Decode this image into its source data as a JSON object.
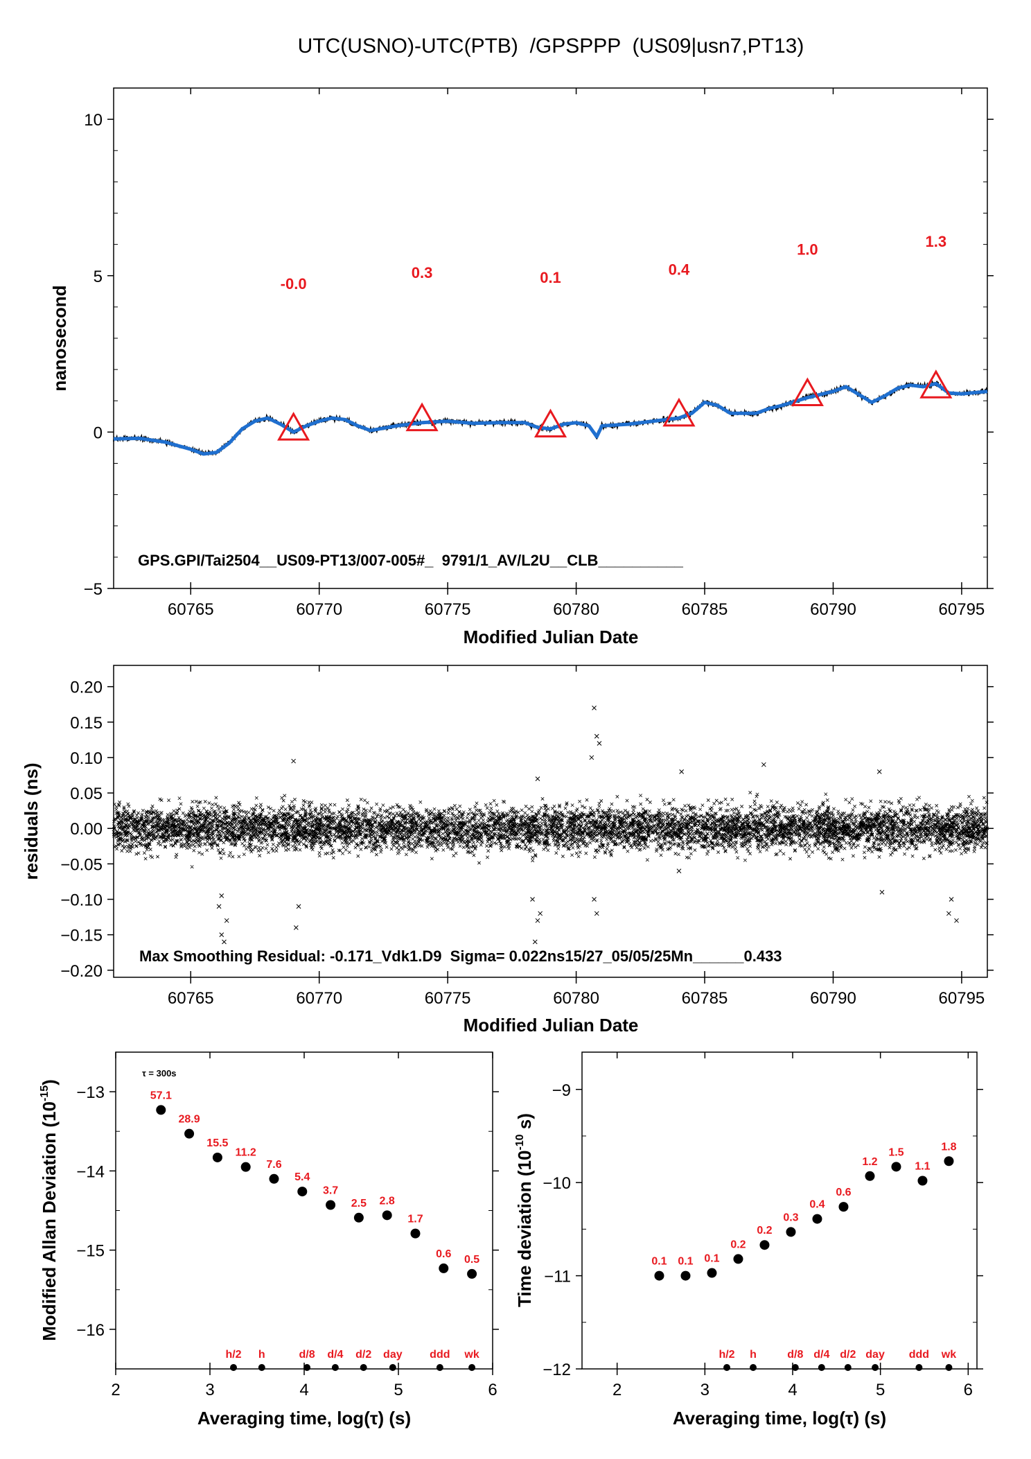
{
  "title": "UTC(USNO)-UTC(PTB)  /GPSPPP  (US09|usn7,PT13)",
  "colors": {
    "series": "#1f6fcf",
    "raw": "#000000",
    "markers": "#e8191f"
  },
  "chart_data": [
    {
      "type": "line",
      "panel": "top",
      "xlabel": "Modified Julian Date",
      "ylabel": "nanosecond",
      "xlim": [
        60762,
        60796
      ],
      "ylim": [
        -5,
        11
      ],
      "xticks": [
        60765,
        60770,
        60775,
        60780,
        60785,
        60790,
        60795
      ],
      "yticks": [
        -5,
        0,
        5,
        10
      ],
      "series_points": [
        [
          60762,
          -0.22
        ],
        [
          60763,
          -0.2
        ],
        [
          60764,
          -0.32
        ],
        [
          60765,
          -0.55
        ],
        [
          60765.5,
          -0.7
        ],
        [
          60766,
          -0.65
        ],
        [
          60766.5,
          -0.35
        ],
        [
          60767,
          0.1
        ],
        [
          60767.5,
          0.35
        ],
        [
          60768,
          0.45
        ],
        [
          60768.5,
          0.25
        ],
        [
          60769,
          0.0
        ],
        [
          60769.5,
          0.2
        ],
        [
          60770,
          0.35
        ],
        [
          60770.5,
          0.45
        ],
        [
          60771,
          0.4
        ],
        [
          60771.5,
          0.2
        ],
        [
          60772,
          0.05
        ],
        [
          60773,
          0.2
        ],
        [
          60774,
          0.3
        ],
        [
          60775,
          0.35
        ],
        [
          60776,
          0.28
        ],
        [
          60777,
          0.3
        ],
        [
          60778,
          0.3
        ],
        [
          60778.5,
          0.15
        ],
        [
          60779,
          0.1
        ],
        [
          60779.5,
          0.25
        ],
        [
          60780,
          0.3
        ],
        [
          60780.5,
          0.2
        ],
        [
          60780.8,
          -0.15
        ],
        [
          60781,
          0.2
        ],
        [
          60782,
          0.25
        ],
        [
          60783,
          0.35
        ],
        [
          60784,
          0.45
        ],
        [
          60784.5,
          0.6
        ],
        [
          60785,
          0.95
        ],
        [
          60785.5,
          0.85
        ],
        [
          60786,
          0.6
        ],
        [
          60787,
          0.6
        ],
        [
          60787.5,
          0.75
        ],
        [
          60788,
          0.85
        ],
        [
          60789,
          1.1
        ],
        [
          60789.5,
          1.2
        ],
        [
          60790,
          1.3
        ],
        [
          60790.5,
          1.45
        ],
        [
          60791,
          1.2
        ],
        [
          60791.5,
          0.95
        ],
        [
          60792,
          1.15
        ],
        [
          60792.5,
          1.4
        ],
        [
          60793,
          1.5
        ],
        [
          60793.5,
          1.45
        ],
        [
          60794,
          1.55
        ],
        [
          60794.5,
          1.25
        ],
        [
          60795,
          1.22
        ],
        [
          60796,
          1.3
        ]
      ],
      "markers": [
        {
          "x": 60769,
          "y": 0.05,
          "label": "-0.0",
          "label_y": 4.75
        },
        {
          "x": 60774,
          "y": 0.35,
          "label": "0.3",
          "label_y": 5.1
        },
        {
          "x": 60779,
          "y": 0.15,
          "label": "0.1",
          "label_y": 4.95
        },
        {
          "x": 60784,
          "y": 0.5,
          "label": "0.4",
          "label_y": 5.2
        },
        {
          "x": 60789,
          "y": 1.15,
          "label": "1.0",
          "label_y": 5.85
        },
        {
          "x": 60794,
          "y": 1.4,
          "label": "1.3",
          "label_y": 6.1
        }
      ],
      "annotation": "GPS.GPI/Tai2504__US09-PT13/007-005#_  9791/1_AV/L2U__CLB__________"
    },
    {
      "type": "scatter",
      "panel": "middle",
      "xlabel": "Modified Julian Date",
      "ylabel": "residuals (ns)",
      "xlim": [
        60762,
        60796
      ],
      "ylim": [
        -0.21,
        0.23
      ],
      "xticks": [
        60765,
        60770,
        60775,
        60780,
        60785,
        60790,
        60795
      ],
      "yticks": [
        -0.2,
        -0.15,
        -0.1,
        -0.05,
        0.0,
        0.05,
        0.1,
        0.15,
        0.2
      ],
      "yticklabels": [
        "-0.20",
        "-0.15",
        "-0.10",
        "-0.05",
        "0.00",
        "0.05",
        "0.10",
        "0.15",
        "0.20"
      ],
      "sigma_ns": 0.022,
      "max_residual_ns": -0.171,
      "outliers": [
        [
          60766.1,
          -0.11
        ],
        [
          60766.2,
          -0.15
        ],
        [
          60766.3,
          -0.16
        ],
        [
          60766.4,
          -0.13
        ],
        [
          60766.2,
          -0.095
        ],
        [
          60769.1,
          -0.14
        ],
        [
          60769.2,
          -0.11
        ],
        [
          60769.0,
          0.095
        ],
        [
          60778.4,
          -0.16
        ],
        [
          60778.5,
          -0.13
        ],
        [
          60778.3,
          -0.1
        ],
        [
          60778.6,
          -0.12
        ],
        [
          60778.5,
          0.07
        ],
        [
          60780.7,
          0.17
        ],
        [
          60780.8,
          0.13
        ],
        [
          60780.9,
          0.12
        ],
        [
          60780.6,
          0.1
        ],
        [
          60780.8,
          -0.12
        ],
        [
          60780.7,
          -0.1
        ],
        [
          60784.1,
          0.08
        ],
        [
          60784.0,
          -0.06
        ],
        [
          60787.3,
          0.09
        ],
        [
          60791.8,
          0.08
        ],
        [
          60791.9,
          -0.09
        ],
        [
          60794.6,
          -0.1
        ],
        [
          60794.8,
          -0.13
        ],
        [
          60794.5,
          -0.12
        ]
      ],
      "annotation": "Max Smoothing Residual: -0.171_Vdk1.D9  Sigma= 0.022ns15/27_05/05/25Mn______0.433"
    },
    {
      "type": "scatter",
      "panel": "bottom-left",
      "xlabel": "Averaging time, log(τ) (s)",
      "ylabel": "Modified Allan Deviation (10",
      "ylabel_exp": "-15",
      "ylabel_end": ")",
      "xlim": [
        2,
        6
      ],
      "ylim": [
        -16.5,
        -12.5
      ],
      "xticks": [
        2,
        3,
        4,
        5,
        6
      ],
      "yticks": [
        -16,
        -15,
        -14,
        -13
      ],
      "tau_note": "τ = 300s",
      "x": [
        2.48,
        2.78,
        3.08,
        3.38,
        3.68,
        3.98,
        4.28,
        4.58,
        4.88,
        5.18,
        5.48,
        5.78
      ],
      "y": [
        -13.23,
        -13.53,
        -13.83,
        -13.95,
        -14.1,
        -14.26,
        -14.43,
        -14.59,
        -14.56,
        -14.79,
        -15.23,
        -15.3
      ],
      "labels": [
        "57.1",
        "28.9",
        "15.5",
        "11.2",
        "7.6",
        "5.4",
        "3.7",
        "2.5",
        "2.8",
        "1.7",
        "0.6",
        "0.5"
      ],
      "time_markers": [
        {
          "x": 3.25,
          "label": "h/2"
        },
        {
          "x": 3.55,
          "label": "h"
        },
        {
          "x": 4.03,
          "label": "d/8"
        },
        {
          "x": 4.33,
          "label": "d/4"
        },
        {
          "x": 4.63,
          "label": "d/2"
        },
        {
          "x": 4.94,
          "label": "day"
        },
        {
          "x": 5.44,
          "label": "ddd"
        },
        {
          "x": 5.78,
          "label": "wk"
        }
      ]
    },
    {
      "type": "scatter",
      "panel": "bottom-right",
      "xlabel": "Averaging time, log(τ) (s)",
      "ylabel": "Time deviation (10",
      "ylabel_exp": "-10",
      "ylabel_end": " s)",
      "xlim": [
        1.6,
        6.1
      ],
      "ylim": [
        -12,
        -8.6
      ],
      "xticks": [
        2,
        3,
        4,
        5,
        6
      ],
      "yticks": [
        -12,
        -11,
        -10,
        -9
      ],
      "x": [
        2.48,
        2.78,
        3.08,
        3.38,
        3.68,
        3.98,
        4.28,
        4.58,
        4.88,
        5.18,
        5.48,
        5.78
      ],
      "y": [
        -11.0,
        -11.0,
        -10.97,
        -10.82,
        -10.67,
        -10.53,
        -10.39,
        -10.26,
        -9.93,
        -9.83,
        -9.98,
        -9.77
      ],
      "labels": [
        "0.1",
        "0.1",
        "0.1",
        "0.2",
        "0.2",
        "0.3",
        "0.4",
        "0.6",
        "1.2",
        "1.5",
        "1.1",
        "1.8"
      ],
      "time_markers": [
        {
          "x": 3.25,
          "label": "h/2"
        },
        {
          "x": 3.55,
          "label": "h"
        },
        {
          "x": 4.03,
          "label": "d/8"
        },
        {
          "x": 4.33,
          "label": "d/4"
        },
        {
          "x": 4.63,
          "label": "d/2"
        },
        {
          "x": 4.94,
          "label": "day"
        },
        {
          "x": 5.44,
          "label": "ddd"
        },
        {
          "x": 5.78,
          "label": "wk"
        }
      ]
    }
  ]
}
